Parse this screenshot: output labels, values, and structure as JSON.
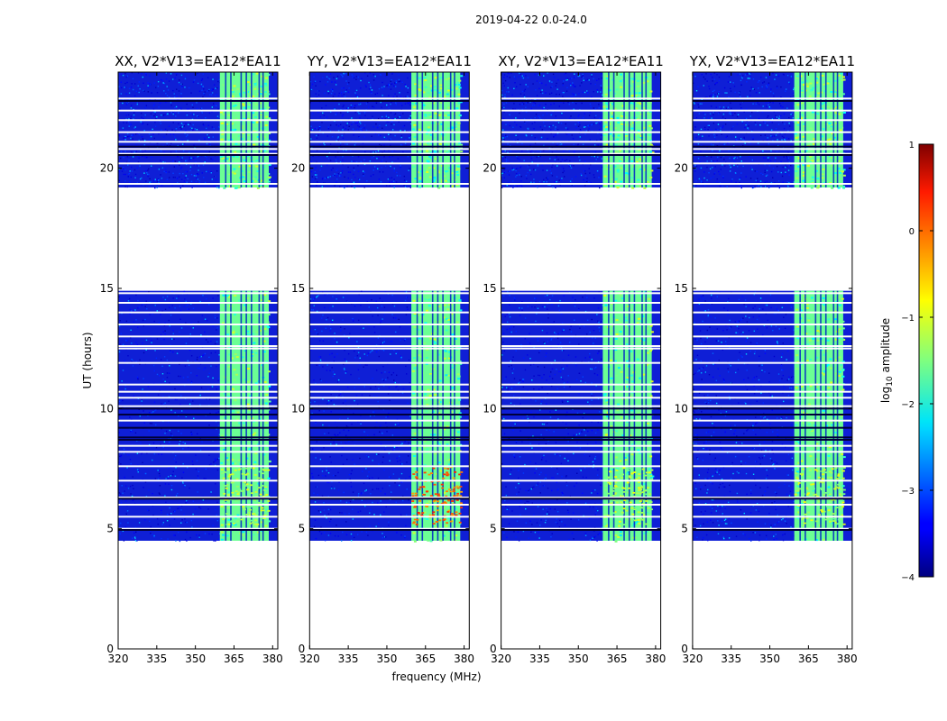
{
  "figure": {
    "suptitle": "2019-04-22 0.0-24.0"
  },
  "chart_data": {
    "type": "heatmap",
    "suptitle": "2019-04-22 0.0-24.0",
    "xlabel": "frequency (MHz)",
    "ylabel": "UT (hours)",
    "xlim": [
      320,
      382
    ],
    "ylim": [
      0,
      24
    ],
    "xticks": [
      320,
      335,
      350,
      365,
      380
    ],
    "yticks": [
      0,
      5,
      10,
      15,
      20
    ],
    "panels": [
      {
        "title": "XX, V2*V13=EA12*EA11"
      },
      {
        "title": "YY, V2*V13=EA12*EA11"
      },
      {
        "title": "XY, V2*V13=EA12*EA11"
      },
      {
        "title": "YX, V2*V13=EA12*EA11"
      }
    ],
    "data_time_ranges_hours": [
      [
        4.5,
        14.9
      ],
      [
        19.2,
        24.0
      ]
    ],
    "bright_band_mhz": [
      359.5,
      378.5
    ],
    "blank_gap_hours": [
      14.9,
      19.2
    ],
    "colorbar": {
      "label": "log10 amplitude",
      "range": [
        -4,
        1
      ],
      "ticks": [
        1,
        0,
        -1,
        -2,
        -3,
        -4
      ]
    }
  }
}
